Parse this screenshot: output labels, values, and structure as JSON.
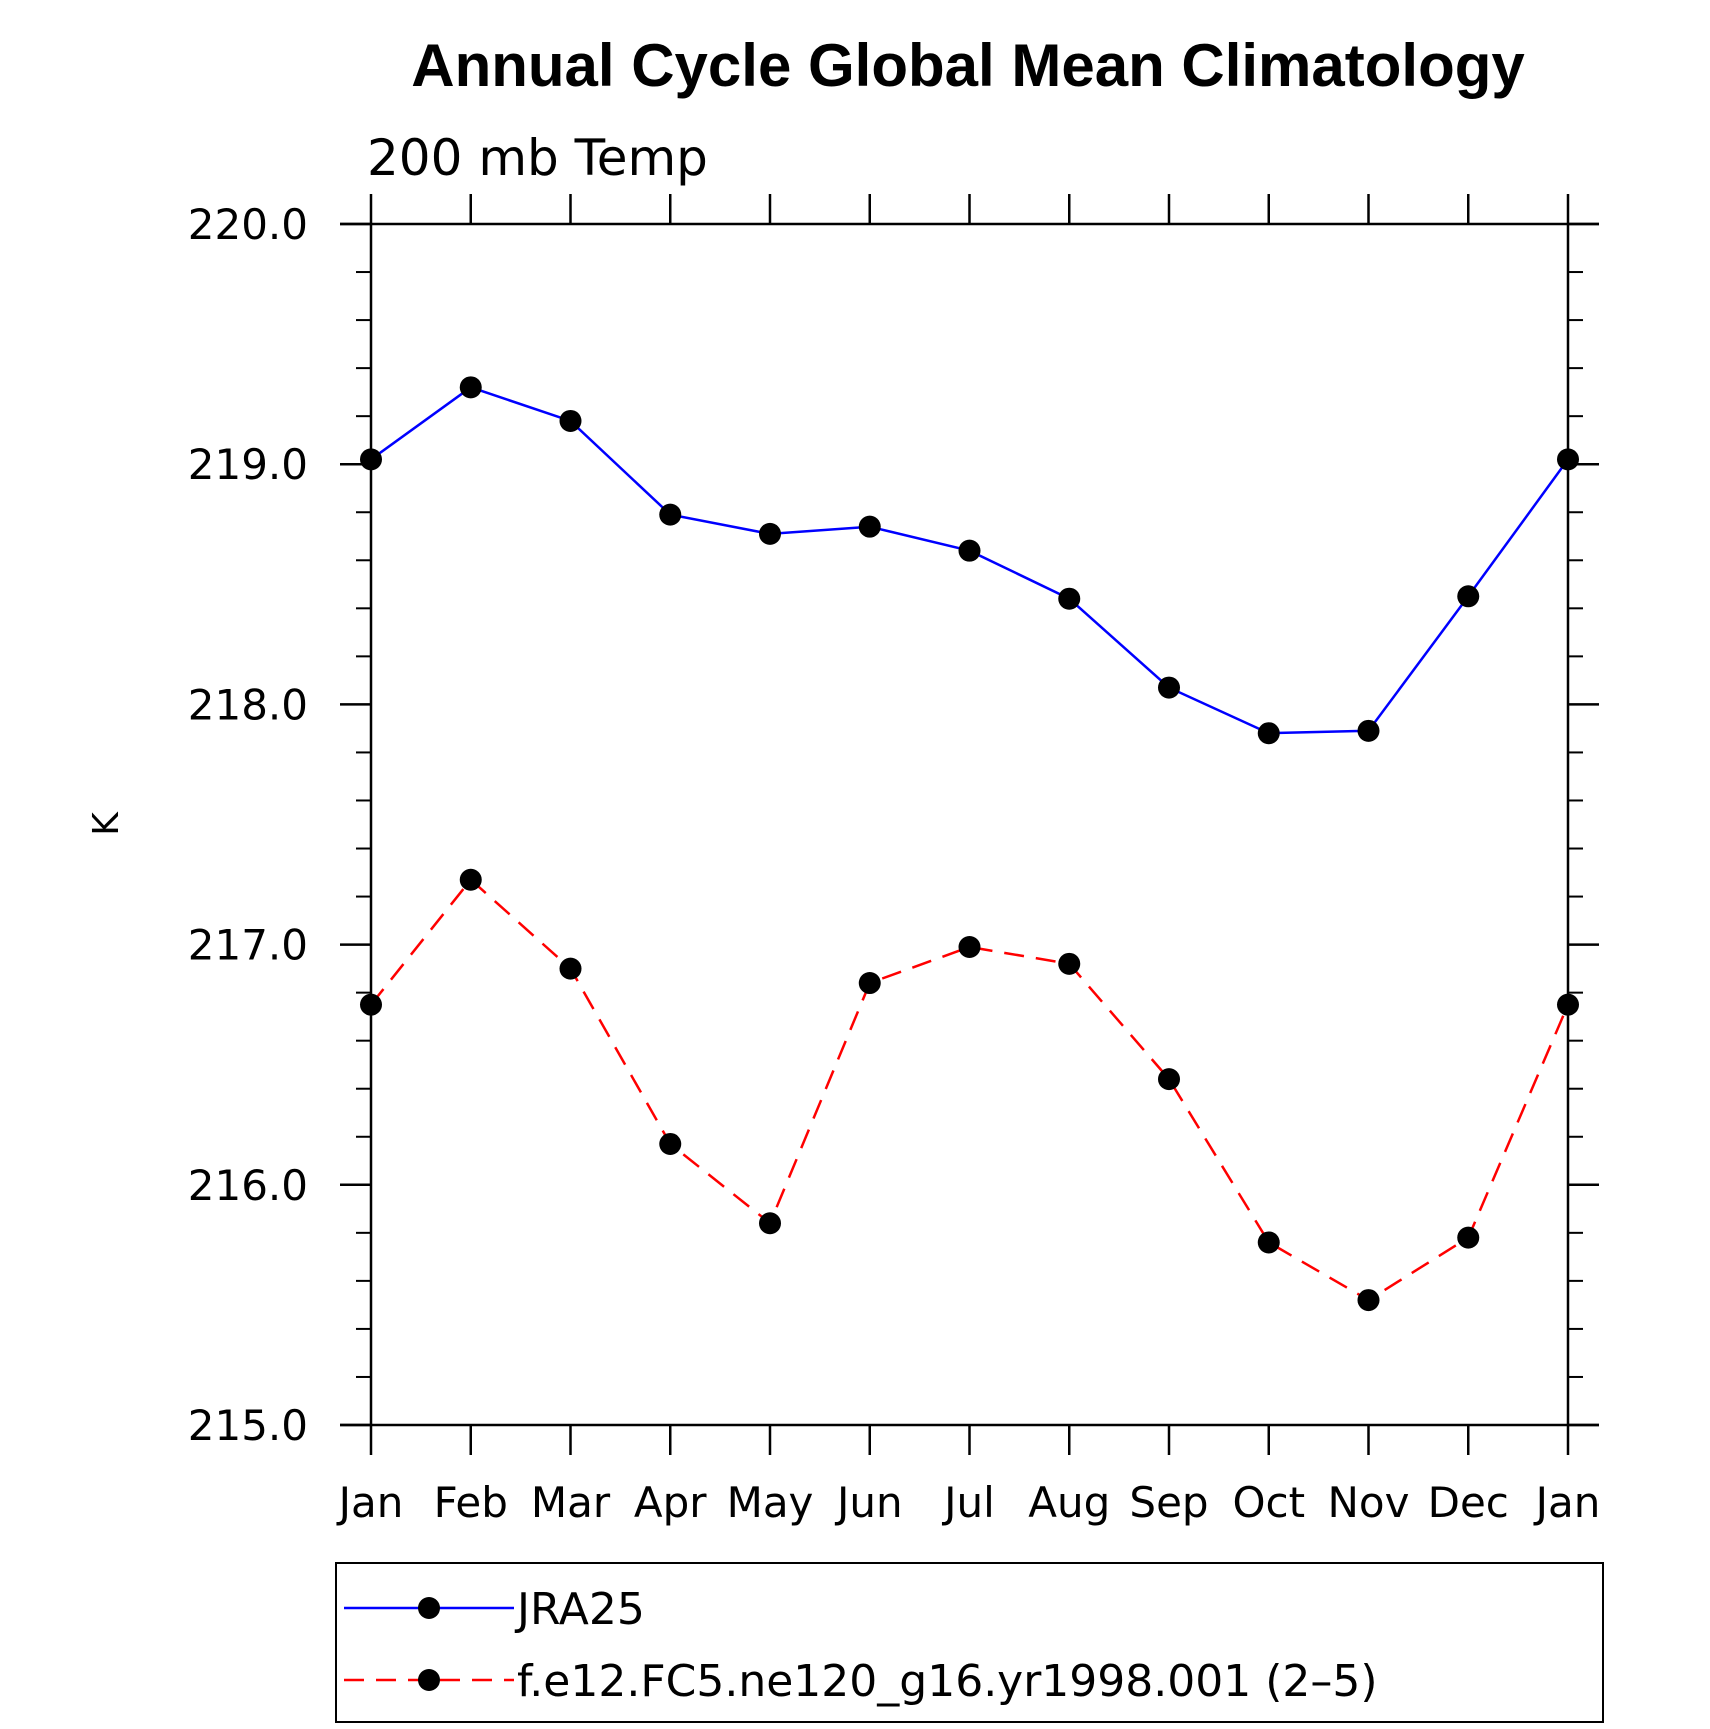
{
  "chart_data": {
    "type": "line",
    "title": "Annual Cycle Global Mean Climatology",
    "subtitle": "200 mb Temp",
    "xlabel": "",
    "ylabel": "K",
    "categories": [
      "Jan",
      "Feb",
      "Mar",
      "Apr",
      "May",
      "Jun",
      "Jul",
      "Aug",
      "Sep",
      "Oct",
      "Nov",
      "Dec",
      "Jan"
    ],
    "ylim": [
      215.0,
      220.0
    ],
    "yticks": [
      "215.0",
      "216.0",
      "217.0",
      "218.0",
      "219.0",
      "220.0"
    ],
    "yticks_values": [
      215.0,
      216.0,
      217.0,
      218.0,
      219.0,
      220.0
    ],
    "y_minor_step": 0.2,
    "grid": false,
    "legend_position": "bottom",
    "series": [
      {
        "name": "JRA25",
        "color": "#0000ff",
        "dashed": false,
        "marker": "dot",
        "values": [
          219.02,
          219.32,
          219.18,
          218.79,
          218.71,
          218.74,
          218.64,
          218.44,
          218.07,
          217.88,
          217.89,
          218.45,
          219.02
        ]
      },
      {
        "name": "f.e12.FC5.ne120_g16.yr1998.001 (2–5)",
        "color": "#ff0000",
        "dashed": true,
        "marker": "dot",
        "values": [
          216.75,
          217.27,
          216.9,
          216.17,
          215.84,
          216.84,
          216.99,
          216.92,
          216.44,
          215.76,
          215.52,
          215.78,
          216.75
        ]
      }
    ]
  }
}
